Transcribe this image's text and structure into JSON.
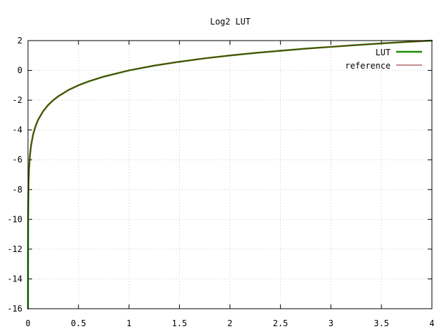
{
  "chart_data": {
    "type": "line",
    "title": "Log2 LUT",
    "xlabel": "",
    "ylabel": "",
    "xlim": [
      0,
      4
    ],
    "ylim": [
      -16,
      2
    ],
    "xticks": [
      0,
      0.5,
      1,
      1.5,
      2,
      2.5,
      3,
      3.5,
      4
    ],
    "xtick_labels": [
      "0",
      "0.5",
      "1",
      "1.5",
      "2",
      "2.5",
      "3",
      "3.5",
      "4"
    ],
    "yticks": [
      -16,
      -14,
      -12,
      -10,
      -8,
      -6,
      -4,
      -2,
      0,
      2
    ],
    "ytick_labels": [
      "-16",
      "-14",
      "-12",
      "-10",
      "-8",
      "-6",
      "-4",
      "-2",
      "0",
      "2"
    ],
    "grid": true,
    "legend_position": "top-right",
    "series": [
      {
        "name": "LUT",
        "color": "#1a8c00",
        "x": [
          1.53e-05,
          0.0001,
          0.001,
          0.005,
          0.01,
          0.02,
          0.03,
          0.05,
          0.075,
          0.1,
          0.15,
          0.2,
          0.25,
          0.3,
          0.4,
          0.5,
          0.6,
          0.75,
          1.0,
          1.25,
          1.5,
          1.75,
          2.0,
          2.25,
          2.5,
          2.75,
          3.0,
          3.25,
          3.5,
          3.75,
          4.0
        ],
        "y": [
          -16,
          -13.29,
          -9.97,
          -7.64,
          -6.64,
          -5.64,
          -5.06,
          -4.32,
          -3.74,
          -3.32,
          -2.74,
          -2.32,
          -2.0,
          -1.74,
          -1.32,
          -1.0,
          -0.74,
          -0.42,
          0.0,
          0.32,
          0.58,
          0.81,
          1.0,
          1.17,
          1.32,
          1.46,
          1.58,
          1.7,
          1.81,
          1.91,
          2.0
        ]
      },
      {
        "name": "reference",
        "color": "#8b1a1a",
        "x": [
          1.53e-05,
          0.0001,
          0.001,
          0.005,
          0.01,
          0.02,
          0.03,
          0.05,
          0.075,
          0.1,
          0.15,
          0.2,
          0.25,
          0.3,
          0.4,
          0.5,
          0.6,
          0.75,
          1.0,
          1.25,
          1.5,
          1.75,
          2.0,
          2.25,
          2.5,
          2.75,
          3.0,
          3.25,
          3.5,
          3.75,
          4.0
        ],
        "y": [
          -16,
          -13.29,
          -9.97,
          -7.64,
          -6.64,
          -5.64,
          -5.06,
          -4.32,
          -3.74,
          -3.32,
          -2.74,
          -2.32,
          -2.0,
          -1.74,
          -1.32,
          -1.0,
          -0.74,
          -0.42,
          0.0,
          0.32,
          0.58,
          0.81,
          1.0,
          1.17,
          1.32,
          1.46,
          1.58,
          1.7,
          1.81,
          1.91,
          2.0
        ]
      }
    ]
  }
}
